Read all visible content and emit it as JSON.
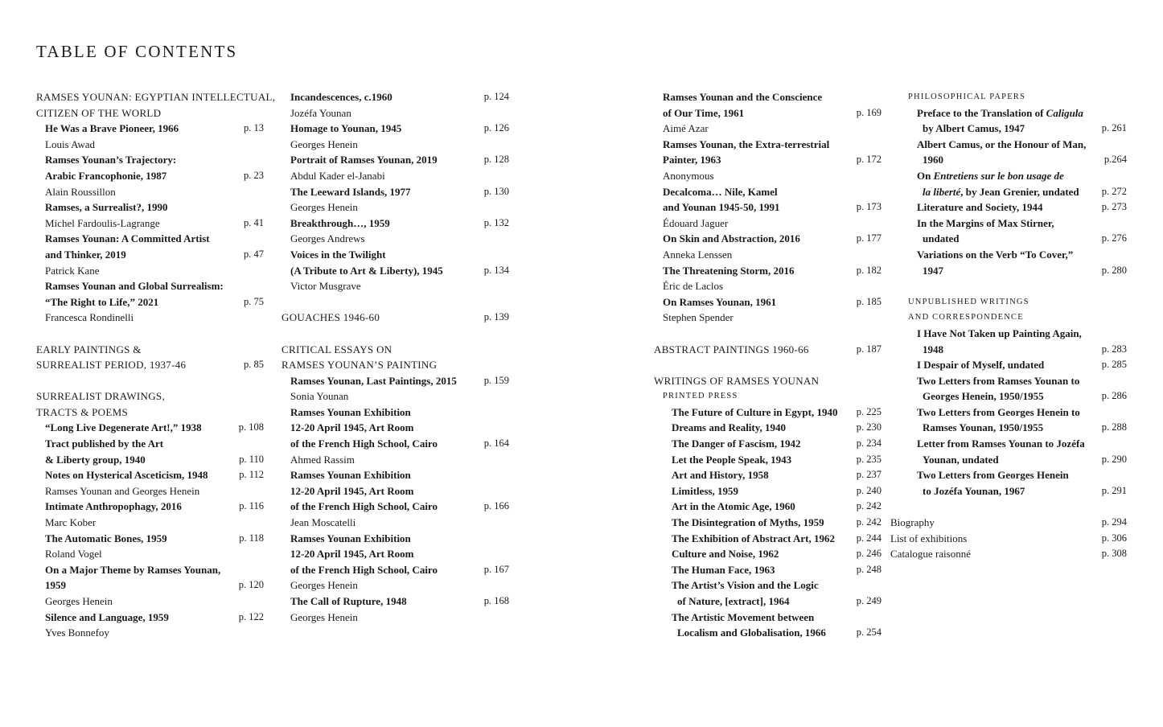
{
  "title": "TABLE OF CONTENTS",
  "columns": [
    {
      "lines": [
        {
          "s": "sec",
          "i": 0,
          "text": "RAMSES YOUNAN: EGYPTIAN INTELLECTUAL,"
        },
        {
          "s": "sec",
          "i": 0,
          "text": "CITIZEN OF THE WORLD"
        },
        {
          "s": "t",
          "i": 1,
          "text": "He Was a Brave Pioneer, 1966",
          "page": "p. 13"
        },
        {
          "s": "a",
          "i": 1,
          "text": "Louis Awad"
        },
        {
          "s": "t",
          "i": 1,
          "text": "Ramses Younan’s Trajectory:"
        },
        {
          "s": "t",
          "i": 1,
          "text": "Arabic Francophonie, 1987",
          "page": "p. 23"
        },
        {
          "s": "a",
          "i": 1,
          "text": "Alain Roussillon"
        },
        {
          "s": "t",
          "i": 1,
          "text": "Ramses, a Surrealist?, 1990"
        },
        {
          "s": "a",
          "i": 1,
          "text": "Michel Fardoulis-Lagrange",
          "page": "p. 41"
        },
        {
          "s": "t",
          "i": 1,
          "text": "Ramses Younan: A Committed Artist"
        },
        {
          "s": "t",
          "i": 1,
          "text": "and Thinker, 2019",
          "page": "p. 47"
        },
        {
          "s": "a",
          "i": 1,
          "text": "Patrick Kane"
        },
        {
          "s": "t",
          "i": 1,
          "text": "Ramses Younan and Global Surrealism:"
        },
        {
          "s": "t",
          "i": 1,
          "text": "“The Right to Life,” 2021",
          "page": "p. 75"
        },
        {
          "s": "a",
          "i": 1,
          "text": "Francesca Rondinelli"
        },
        {},
        {
          "s": "sec",
          "i": 0,
          "text": "EARLY PAINTINGS &"
        },
        {
          "s": "sec",
          "i": 0,
          "text": "SURREALIST PERIOD, 1937-46",
          "page": "p. 85"
        },
        {},
        {
          "s": "sec",
          "i": 0,
          "text": "SURREALIST DRAWINGS,"
        },
        {
          "s": "sec",
          "i": 0,
          "text": "TRACTS & POEMS"
        },
        {
          "s": "t",
          "i": 1,
          "text": "“Long Live Degenerate Art!,” 1938",
          "page": "p. 108"
        },
        {
          "s": "t",
          "i": 1,
          "text": "Tract published by the Art"
        },
        {
          "s": "t",
          "i": 1,
          "text": "& Liberty group, 1940",
          "page": "p. 110"
        },
        {
          "s": "t",
          "i": 1,
          "text": "Notes on Hysterical Asceticism, 1948",
          "page": "p. 112"
        },
        {
          "s": "a",
          "i": 1,
          "text": "Ramses Younan and Georges Henein"
        },
        {
          "s": "t",
          "i": 1,
          "text": "Intimate Anthropophagy, 2016",
          "page": "p. 116"
        },
        {
          "s": "a",
          "i": 1,
          "text": "Marc Kober"
        },
        {
          "s": "t",
          "i": 1,
          "text": "The Automatic Bones, 1959",
          "page": "p. 118"
        },
        {
          "s": "a",
          "i": 1,
          "text": "Roland Vogel"
        },
        {
          "s": "t",
          "i": 1,
          "text": "On a Major Theme by Ramses Younan,"
        },
        {
          "s": "t",
          "i": 1,
          "text": "1959",
          "page": "p. 120"
        },
        {
          "s": "a",
          "i": 1,
          "text": "Georges Henein"
        },
        {
          "s": "t",
          "i": 1,
          "text": "Silence and Language, 1959",
          "page": "p. 122"
        },
        {
          "s": "a",
          "i": 1,
          "text": "Yves Bonnefoy"
        }
      ]
    },
    {
      "lines": [
        {
          "s": "t",
          "i": 1,
          "text": "Incandescences, c.1960",
          "page": "p. 124"
        },
        {
          "s": "a",
          "i": 1,
          "text": "Jozéfa Younan"
        },
        {
          "s": "t",
          "i": 1,
          "text": "Homage to Younan, 1945",
          "page": "p. 126"
        },
        {
          "s": "a",
          "i": 1,
          "text": "Georges Henein"
        },
        {
          "s": "t",
          "i": 1,
          "text": "Portrait of Ramses Younan, 2019",
          "page": "p. 128"
        },
        {
          "s": "a",
          "i": 1,
          "text": "Abdul Kader el-Janabi"
        },
        {
          "s": "t",
          "i": 1,
          "text": "The Leeward Islands, 1977",
          "page": "p. 130"
        },
        {
          "s": "a",
          "i": 1,
          "text": "Georges Henein"
        },
        {
          "s": "t",
          "i": 1,
          "text": "Breakthrough…, 1959",
          "page": "p. 132"
        },
        {
          "s": "a",
          "i": 1,
          "text": "Georges Andrews"
        },
        {
          "s": "t",
          "i": 1,
          "text": "Voices in the Twilight"
        },
        {
          "s": "t",
          "i": 1,
          "text": "(A Tribute to Art & Liberty), 1945",
          "page": "p. 134"
        },
        {
          "s": "a",
          "i": 1,
          "text": "Victor Musgrave"
        },
        {},
        {
          "s": "sec",
          "i": 0,
          "text": "GOUACHES 1946-60",
          "page": "p. 139"
        },
        {},
        {
          "s": "sec",
          "i": 0,
          "text": "CRITICAL ESSAYS ON"
        },
        {
          "s": "sec",
          "i": 0,
          "text": "RAMSES YOUNAN’S PAINTING"
        },
        {
          "s": "t",
          "i": 1,
          "text": "Ramses Younan, Last Paintings, 2015",
          "page": "p. 159"
        },
        {
          "s": "a",
          "i": 1,
          "text": "Sonia Younan"
        },
        {
          "s": "t",
          "i": 1,
          "text": "Ramses Younan Exhibition"
        },
        {
          "s": "t",
          "i": 1,
          "text": "12-20 April 1945, Art Room"
        },
        {
          "s": "t",
          "i": 1,
          "text": "of the French High School, Cairo",
          "page": "p. 164"
        },
        {
          "s": "a",
          "i": 1,
          "text": "Ahmed Rassim"
        },
        {
          "s": "t",
          "i": 1,
          "text": "Ramses Younan Exhibition"
        },
        {
          "s": "t",
          "i": 1,
          "text": "12-20 April 1945, Art Room"
        },
        {
          "s": "t",
          "i": 1,
          "text": "of the French High School, Cairo",
          "page": "p. 166"
        },
        {
          "s": "a",
          "i": 1,
          "text": "Jean Moscatelli"
        },
        {
          "s": "t",
          "i": 1,
          "text": "Ramses Younan Exhibition"
        },
        {
          "s": "t",
          "i": 1,
          "text": "12-20 April 1945, Art Room"
        },
        {
          "s": "t",
          "i": 1,
          "text": "of the French High School, Cairo",
          "page": "p. 167"
        },
        {
          "s": "a",
          "i": 1,
          "text": "Georges Henein"
        },
        {
          "s": "t",
          "i": 1,
          "text": "The Call of Rupture, 1948",
          "page": "p. 168"
        },
        {
          "s": "a",
          "i": 1,
          "text": "Georges Henein"
        }
      ]
    },
    {
      "lines": [
        {
          "s": "t",
          "i": 1,
          "text": "Ramses Younan and the Conscience"
        },
        {
          "s": "t",
          "i": 1,
          "text": "of Our Time, 1961",
          "page": "p. 169"
        },
        {
          "s": "a",
          "i": 1,
          "text": "Aimé Azar"
        },
        {
          "s": "t",
          "i": 1,
          "text": "Ramses Younan, the Extra-terrestrial"
        },
        {
          "s": "t",
          "i": 1,
          "text": "Painter, 1963",
          "page": "p. 172"
        },
        {
          "s": "a",
          "i": 1,
          "text": "Anonymous"
        },
        {
          "s": "t",
          "i": 1,
          "text": "Decalcoma… Nile, Kamel"
        },
        {
          "s": "t",
          "i": 1,
          "text": "and Younan 1945-50, 1991",
          "page": "p. 173"
        },
        {
          "s": "a",
          "i": 1,
          "text": "Édouard Jaguer"
        },
        {
          "s": "t",
          "i": 1,
          "text": "On Skin and Abstraction, 2016",
          "page": "p. 177"
        },
        {
          "s": "a",
          "i": 1,
          "text": "Anneka Lenssen"
        },
        {
          "s": "t",
          "i": 1,
          "text": "The Threatening Storm, 2016",
          "page": "p. 182"
        },
        {
          "s": "a",
          "i": 1,
          "text": "Éric de Laclos"
        },
        {
          "s": "t",
          "i": 1,
          "text": "On Ramses Younan, 1961",
          "page": "p. 185"
        },
        {
          "s": "a",
          "i": 1,
          "text": "Stephen Spender"
        },
        {},
        {
          "s": "sec",
          "i": 0,
          "text": "ABSTRACT PAINTINGS 1960-66",
          "page": "p. 187"
        },
        {},
        {
          "s": "sec",
          "i": 0,
          "text": "WRITINGS OF RAMSES YOUNAN"
        },
        {
          "s": "sc",
          "i": 1,
          "text": "Printed press"
        },
        {
          "s": "t",
          "i": 2,
          "text": "The Future of Culture in Egypt, 1940",
          "page": "p. 225"
        },
        {
          "s": "t",
          "i": 2,
          "text": "Dreams and Reality, 1940",
          "page": "p. 230"
        },
        {
          "s": "t",
          "i": 2,
          "text": "The Danger of Fascism, 1942",
          "page": "p. 234"
        },
        {
          "s": "t",
          "i": 2,
          "text": "Let the People Speak, 1943",
          "page": "p. 235"
        },
        {
          "s": "t",
          "i": 2,
          "text": "Art and History, 1958",
          "page": "p. 237"
        },
        {
          "s": "t",
          "i": 2,
          "text": "Limitless, 1959",
          "page": "p. 240"
        },
        {
          "s": "t",
          "i": 2,
          "text": "Art in the Atomic Age, 1960",
          "page": "p. 242"
        },
        {
          "s": "t",
          "i": 2,
          "text": "The Disintegration of Myths, 1959",
          "page": "p. 242"
        },
        {
          "s": "t",
          "i": 2,
          "text": "The Exhibition of Abstract Art, 1962",
          "page": "p. 244"
        },
        {
          "s": "t",
          "i": 2,
          "text": "Culture and Noise, 1962",
          "page": "p. 246"
        },
        {
          "s": "t",
          "i": 2,
          "text": "The Human Face, 1963",
          "page": "p. 248"
        },
        {
          "s": "t",
          "i": 2,
          "text": "The Artist’s Vision and the Logic"
        },
        {
          "s": "t",
          "i": 3,
          "text": "of Nature, [extract], 1964",
          "page": "p. 249"
        },
        {
          "s": "t",
          "i": 2,
          "text": "The Artistic Movement between"
        },
        {
          "s": "t",
          "i": 3,
          "text": "Localism and Globalisation, 1966",
          "page": "p. 254"
        }
      ]
    },
    {
      "lines": [
        {
          "s": "sc",
          "i": 1,
          "text": "Philosophical papers"
        },
        {
          "s": "t",
          "i": 2,
          "parts": [
            {
              "t": "Preface to the Translation of "
            },
            {
              "t": "Caligula",
              "it": true
            }
          ]
        },
        {
          "s": "t",
          "i": 3,
          "text": "by Albert Camus, 1947",
          "page": "p. 261"
        },
        {
          "s": "t",
          "i": 2,
          "text": "Albert Camus, or the Honour of Man,"
        },
        {
          "s": "t",
          "i": 3,
          "text": "1960",
          "page": "p.264"
        },
        {
          "s": "t",
          "i": 2,
          "parts": [
            {
              "t": "On "
            },
            {
              "t": "Entretiens sur le bon usage de",
              "it": true
            }
          ]
        },
        {
          "s": "t",
          "i": 3,
          "parts": [
            {
              "t": "la liberté",
              "it": true
            },
            {
              "t": ", by Jean Grenier, undated"
            }
          ],
          "page": "p. 272"
        },
        {
          "s": "t",
          "i": 2,
          "text": "Literature and Society, 1944",
          "page": "p. 273"
        },
        {
          "s": "t",
          "i": 2,
          "text": "In the Margins of Max Stirner,"
        },
        {
          "s": "t",
          "i": 3,
          "text": "undated",
          "page": "p. 276"
        },
        {
          "s": "t",
          "i": 2,
          "text": "Variations on the Verb “To Cover,”"
        },
        {
          "s": "t",
          "i": 3,
          "text": "1947",
          "page": "p. 280"
        },
        {},
        {
          "s": "sc",
          "i": 1,
          "text": "Unpublished writings"
        },
        {
          "s": "sc",
          "i": 1,
          "text": "and correspondence"
        },
        {
          "s": "t",
          "i": 2,
          "text": "I Have Not Taken up Painting Again,"
        },
        {
          "s": "t",
          "i": 3,
          "text": "1948",
          "page": "p. 283"
        },
        {
          "s": "t",
          "i": 2,
          "text": "I Despair of Myself, undated",
          "page": "p. 285"
        },
        {
          "s": "t",
          "i": 2,
          "text": "Two Letters from Ramses Younan to"
        },
        {
          "s": "t",
          "i": 3,
          "text": "Georges Henein, 1950/1955",
          "page": "p. 286"
        },
        {
          "s": "t",
          "i": 2,
          "text": "Two Letters from Georges Henein to"
        },
        {
          "s": "t",
          "i": 3,
          "text": "Ramses Younan, 1950/1955",
          "page": "p. 288"
        },
        {
          "s": "t",
          "i": 2,
          "text": "Letter from Ramses Younan to Jozéfa"
        },
        {
          "s": "t",
          "i": 3,
          "text": "Younan, undated",
          "page": "p. 290"
        },
        {
          "s": "t",
          "i": 2,
          "text": "Two Letters from Georges Henein"
        },
        {
          "s": "t",
          "i": 3,
          "text": "to Jozéfa Younan, 1967",
          "page": "p. 291"
        },
        {},
        {
          "s": "m",
          "i": 0,
          "text": "Biography",
          "page": "p. 294"
        },
        {
          "s": "m",
          "i": 0,
          "text": "List of exhibitions",
          "page": "p. 306"
        },
        {
          "s": "m",
          "i": 0,
          "text": "Catalogue raisonné",
          "page": "p. 308"
        }
      ]
    }
  ]
}
